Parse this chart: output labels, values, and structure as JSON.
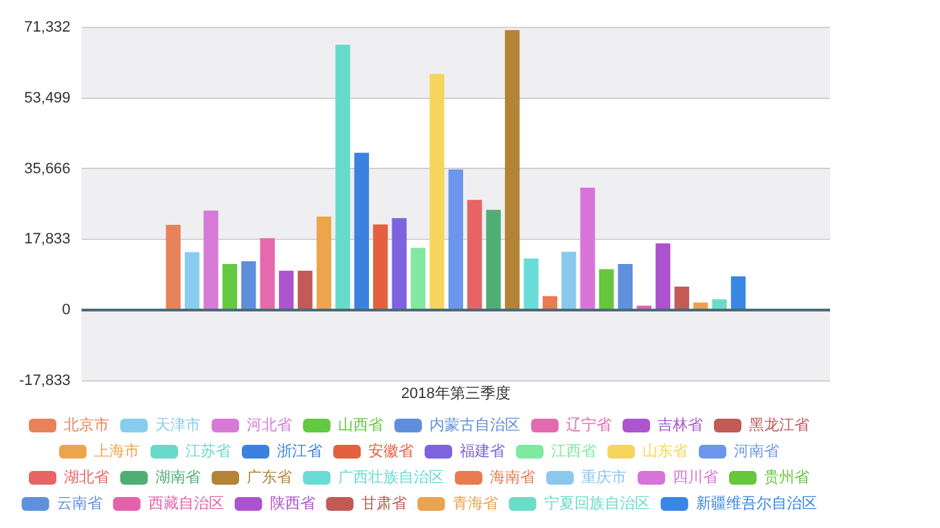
{
  "chart_data": {
    "type": "bar",
    "categories": [
      "2018年第三季度"
    ],
    "series": [
      {
        "name": "北京市",
        "color": "#e8825a",
        "values": [
          21500
        ]
      },
      {
        "name": "天津市",
        "color": "#87cdf0",
        "values": [
          14600
        ]
      },
      {
        "name": "河北省",
        "color": "#d67ad6",
        "values": [
          25100
        ]
      },
      {
        "name": "山西省",
        "color": "#62c940",
        "values": [
          11600
        ]
      },
      {
        "name": "内蒙古自治区",
        "color": "#5f8fdc",
        "values": [
          12300
        ]
      },
      {
        "name": "辽宁省",
        "color": "#e46aad",
        "values": [
          18100
        ]
      },
      {
        "name": "吉林省",
        "color": "#ab55cf",
        "values": [
          9900
        ]
      },
      {
        "name": "黑龙江省",
        "color": "#c25a58",
        "values": [
          9900
        ]
      },
      {
        "name": "上海市",
        "color": "#eda54c",
        "values": [
          23600
        ]
      },
      {
        "name": "江苏省",
        "color": "#68dacb",
        "values": [
          67000
        ]
      },
      {
        "name": "浙江省",
        "color": "#3b82e0",
        "values": [
          39700
        ]
      },
      {
        "name": "安徽省",
        "color": "#e4603f",
        "values": [
          21600
        ]
      },
      {
        "name": "福建省",
        "color": "#7e62e0",
        "values": [
          23200
        ]
      },
      {
        "name": "江西省",
        "color": "#80e8a0",
        "values": [
          15700
        ]
      },
      {
        "name": "山东省",
        "color": "#f6d55c",
        "values": [
          59600
        ]
      },
      {
        "name": "河南省",
        "color": "#6b96ec",
        "values": [
          35500
        ]
      },
      {
        "name": "湖北省",
        "color": "#e86464",
        "values": [
          27800
        ]
      },
      {
        "name": "湖南省",
        "color": "#4fae74",
        "values": [
          25300
        ]
      },
      {
        "name": "广东省",
        "color": "#b38436",
        "values": [
          70700
        ]
      },
      {
        "name": "广西壮族自治区",
        "color": "#6adcd8",
        "values": [
          13000
        ]
      },
      {
        "name": "海南省",
        "color": "#ea7a50",
        "values": [
          3500
        ]
      },
      {
        "name": "重庆市",
        "color": "#8ac8ee",
        "values": [
          14700
        ]
      },
      {
        "name": "四川省",
        "color": "#d874d8",
        "values": [
          30900
        ]
      },
      {
        "name": "贵州省",
        "color": "#66c63c",
        "values": [
          10300
        ]
      },
      {
        "name": "云南省",
        "color": "#5e90dd",
        "values": [
          11600
        ]
      },
      {
        "name": "西藏自治区",
        "color": "#e462ac",
        "values": [
          1100
        ]
      },
      {
        "name": "陕西省",
        "color": "#ad52cf",
        "values": [
          16800
        ]
      },
      {
        "name": "甘肃省",
        "color": "#c35a56",
        "values": [
          5900
        ]
      },
      {
        "name": "青海省",
        "color": "#eaa34e",
        "values": [
          1900
        ]
      },
      {
        "name": "宁夏回族自治区",
        "color": "#6cdcc8",
        "values": [
          2700
        ]
      },
      {
        "name": "新疆维吾尔自治区",
        "color": "#3a86e4",
        "values": [
          8500
        ]
      }
    ],
    "ylim": [
      -17833,
      71332
    ],
    "yticks": [
      {
        "value": -17833,
        "label": "-17,833"
      },
      0,
      {
        "value": 17833,
        "label": "17,833"
      },
      {
        "value": 35666,
        "label": "35,666"
      },
      {
        "value": 53499,
        "label": "53,499"
      },
      {
        "value": 71332,
        "label": "71,332"
      }
    ],
    "ref_lines": [
      {
        "axis": "y",
        "value": 0,
        "color": "#4a6a78"
      }
    ],
    "grid": "y",
    "legend": "bottom"
  }
}
